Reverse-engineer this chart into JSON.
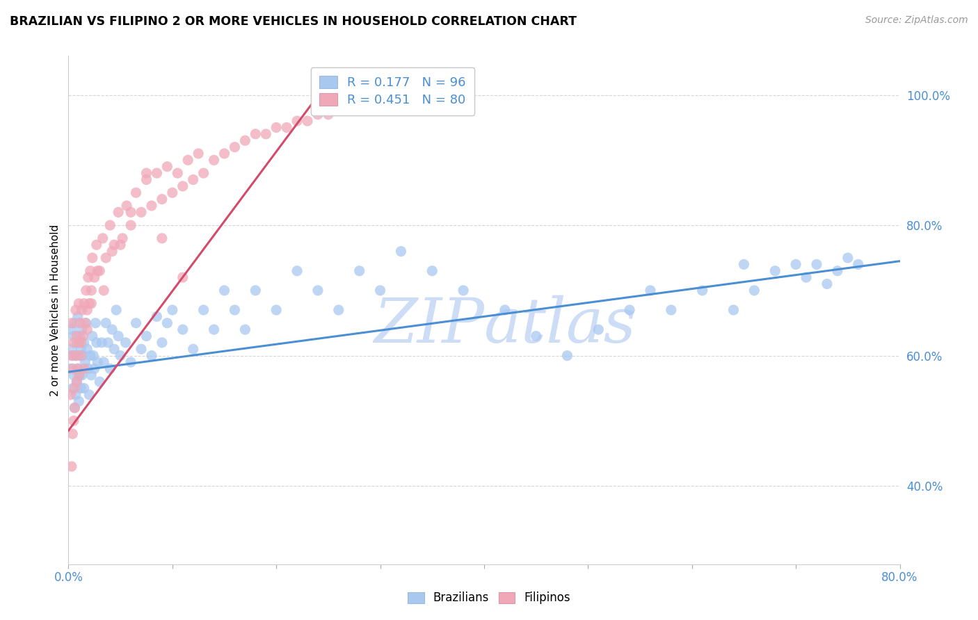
{
  "title": "BRAZILIAN VS FILIPINO 2 OR MORE VEHICLES IN HOUSEHOLD CORRELATION CHART",
  "source": "Source: ZipAtlas.com",
  "ylabel": "2 or more Vehicles in Household",
  "yticks": [
    "40.0%",
    "60.0%",
    "80.0%",
    "100.0%"
  ],
  "ytick_vals": [
    0.4,
    0.6,
    0.8,
    1.0
  ],
  "legend_label1": "Brazilians",
  "legend_label2": "Filipinos",
  "R1": 0.177,
  "N1": 96,
  "R2": 0.451,
  "N2": 80,
  "blue_color": "#a8c8f0",
  "pink_color": "#f0a8b8",
  "blue_line_color": "#4a8fd4",
  "pink_line_color": "#d44a6a",
  "watermark_color": "#ccddf5",
  "blue_scatter_x": [
    0.002,
    0.003,
    0.003,
    0.004,
    0.004,
    0.005,
    0.005,
    0.006,
    0.006,
    0.007,
    0.007,
    0.008,
    0.008,
    0.009,
    0.009,
    0.01,
    0.01,
    0.011,
    0.011,
    0.012,
    0.012,
    0.013,
    0.013,
    0.014,
    0.015,
    0.015,
    0.016,
    0.017,
    0.018,
    0.019,
    0.02,
    0.021,
    0.022,
    0.023,
    0.024,
    0.025,
    0.026,
    0.027,
    0.028,
    0.03,
    0.032,
    0.034,
    0.036,
    0.038,
    0.04,
    0.042,
    0.044,
    0.046,
    0.048,
    0.05,
    0.055,
    0.06,
    0.065,
    0.07,
    0.075,
    0.08,
    0.085,
    0.09,
    0.095,
    0.1,
    0.11,
    0.12,
    0.13,
    0.14,
    0.15,
    0.16,
    0.17,
    0.18,
    0.2,
    0.22,
    0.24,
    0.26,
    0.28,
    0.3,
    0.32,
    0.35,
    0.38,
    0.42,
    0.45,
    0.48,
    0.51,
    0.54,
    0.56,
    0.58,
    0.61,
    0.64,
    0.65,
    0.66,
    0.68,
    0.7,
    0.71,
    0.72,
    0.73,
    0.74,
    0.75,
    0.76
  ],
  "blue_scatter_y": [
    0.58,
    0.61,
    0.64,
    0.55,
    0.6,
    0.57,
    0.63,
    0.52,
    0.65,
    0.54,
    0.6,
    0.56,
    0.62,
    0.58,
    0.66,
    0.53,
    0.6,
    0.57,
    0.63,
    0.55,
    0.61,
    0.57,
    0.64,
    0.6,
    0.55,
    0.62,
    0.59,
    0.65,
    0.61,
    0.58,
    0.54,
    0.6,
    0.57,
    0.63,
    0.6,
    0.58,
    0.65,
    0.62,
    0.59,
    0.56,
    0.62,
    0.59,
    0.65,
    0.62,
    0.58,
    0.64,
    0.61,
    0.67,
    0.63,
    0.6,
    0.62,
    0.59,
    0.65,
    0.61,
    0.63,
    0.6,
    0.66,
    0.62,
    0.65,
    0.67,
    0.64,
    0.61,
    0.67,
    0.64,
    0.7,
    0.67,
    0.64,
    0.7,
    0.67,
    0.73,
    0.7,
    0.67,
    0.73,
    0.7,
    0.76,
    0.73,
    0.7,
    0.67,
    0.63,
    0.6,
    0.64,
    0.67,
    0.7,
    0.67,
    0.7,
    0.67,
    0.74,
    0.7,
    0.73,
    0.74,
    0.72,
    0.74,
    0.71,
    0.73,
    0.75,
    0.74
  ],
  "pink_scatter_x": [
    0.002,
    0.003,
    0.003,
    0.004,
    0.005,
    0.005,
    0.006,
    0.007,
    0.007,
    0.008,
    0.009,
    0.01,
    0.01,
    0.011,
    0.012,
    0.013,
    0.014,
    0.015,
    0.016,
    0.017,
    0.018,
    0.019,
    0.02,
    0.021,
    0.022,
    0.023,
    0.025,
    0.027,
    0.03,
    0.033,
    0.036,
    0.04,
    0.044,
    0.048,
    0.052,
    0.056,
    0.06,
    0.065,
    0.07,
    0.075,
    0.08,
    0.085,
    0.09,
    0.095,
    0.1,
    0.105,
    0.11,
    0.115,
    0.12,
    0.125,
    0.13,
    0.14,
    0.15,
    0.16,
    0.17,
    0.18,
    0.19,
    0.2,
    0.21,
    0.22,
    0.23,
    0.24,
    0.25,
    0.004,
    0.006,
    0.003,
    0.008,
    0.01,
    0.012,
    0.015,
    0.018,
    0.022,
    0.028,
    0.034,
    0.042,
    0.05,
    0.06,
    0.075,
    0.09,
    0.11
  ],
  "pink_scatter_y": [
    0.54,
    0.6,
    0.65,
    0.58,
    0.5,
    0.62,
    0.55,
    0.6,
    0.67,
    0.63,
    0.58,
    0.62,
    0.68,
    0.65,
    0.6,
    0.67,
    0.63,
    0.68,
    0.65,
    0.7,
    0.67,
    0.72,
    0.68,
    0.73,
    0.7,
    0.75,
    0.72,
    0.77,
    0.73,
    0.78,
    0.75,
    0.8,
    0.77,
    0.82,
    0.78,
    0.83,
    0.8,
    0.85,
    0.82,
    0.87,
    0.83,
    0.88,
    0.84,
    0.89,
    0.85,
    0.88,
    0.86,
    0.9,
    0.87,
    0.91,
    0.88,
    0.9,
    0.91,
    0.92,
    0.93,
    0.94,
    0.94,
    0.95,
    0.95,
    0.96,
    0.96,
    0.97,
    0.97,
    0.48,
    0.52,
    0.43,
    0.56,
    0.57,
    0.62,
    0.58,
    0.64,
    0.68,
    0.73,
    0.7,
    0.76,
    0.77,
    0.82,
    0.88,
    0.78,
    0.72
  ],
  "blue_trend_x": [
    0.0,
    0.8
  ],
  "blue_trend_y": [
    0.575,
    0.745
  ],
  "pink_trend_x": [
    0.0,
    0.25
  ],
  "pink_trend_y": [
    0.485,
    1.02
  ],
  "xlim": [
    0.0,
    0.8
  ],
  "ylim": [
    0.28,
    1.06
  ],
  "xtick_positions": [
    0.0,
    0.1,
    0.2,
    0.3,
    0.4,
    0.5,
    0.6,
    0.7,
    0.8
  ]
}
